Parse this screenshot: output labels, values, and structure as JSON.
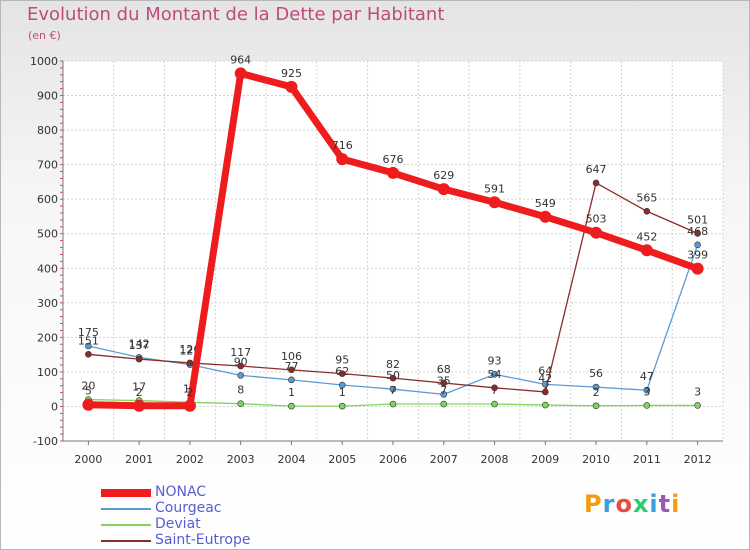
{
  "title": "Evolution du Montant de la Dette par Habitant",
  "subtitle": "(en €)",
  "logo": {
    "text": "Proxiti",
    "colors": [
      "#f39c12",
      "#3aa0e0",
      "#e74c3c",
      "#2ecc71",
      "#3aa0e0",
      "#9b59b6",
      "#f39c12"
    ]
  },
  "chart_data": {
    "type": "line",
    "x": [
      "2000",
      "2001",
      "2002",
      "2003",
      "2004",
      "2005",
      "2006",
      "2007",
      "2008",
      "2009",
      "2010",
      "2011",
      "2012"
    ],
    "ylim": [
      -100,
      1000
    ],
    "yticks": [
      -100,
      0,
      100,
      200,
      300,
      400,
      500,
      600,
      700,
      800,
      900,
      1000
    ],
    "grid": true,
    "legend_position": "bottom-left",
    "series": [
      {
        "name": "Courgeac",
        "color": "#5b9bd5",
        "values": [
          175,
          142,
          121,
          90,
          77,
          62,
          50,
          35,
          93,
          64,
          56,
          47,
          468
        ],
        "labels": [
          "175",
          "142",
          "121",
          "90",
          "77",
          "62",
          "50",
          "35",
          "93",
          "64",
          "56",
          "47",
          "468"
        ]
      },
      {
        "name": "Deviat",
        "color": "#7fd65a",
        "values": [
          20,
          17,
          12,
          8,
          1,
          1,
          7,
          7,
          7,
          4,
          2,
          3,
          3
        ],
        "labels": [
          "20",
          "17",
          "12",
          "8",
          "1",
          "1",
          "7",
          "7",
          "7",
          "4",
          "2",
          "3",
          "3"
        ]
      },
      {
        "name": "Saint-Eutrope",
        "color": "#8b2c2c",
        "values": [
          151,
          137,
          126,
          117,
          106,
          95,
          82,
          68,
          54,
          42,
          647,
          565,
          501
        ],
        "labels": [
          "151",
          "137",
          "126",
          "117",
          "106",
          "95",
          "82",
          "68",
          "54",
          "42",
          "647",
          "565",
          "501"
        ]
      },
      {
        "name": "NONAC",
        "color": "#ee1c1c",
        "values": [
          5,
          2,
          2,
          964,
          925,
          716,
          676,
          629,
          591,
          549,
          503,
          452,
          399
        ],
        "labels": [
          "5",
          "2",
          "2",
          "964",
          "925",
          "716",
          "676",
          "629",
          "591",
          "549",
          "503",
          "452",
          "399"
        ]
      }
    ]
  }
}
